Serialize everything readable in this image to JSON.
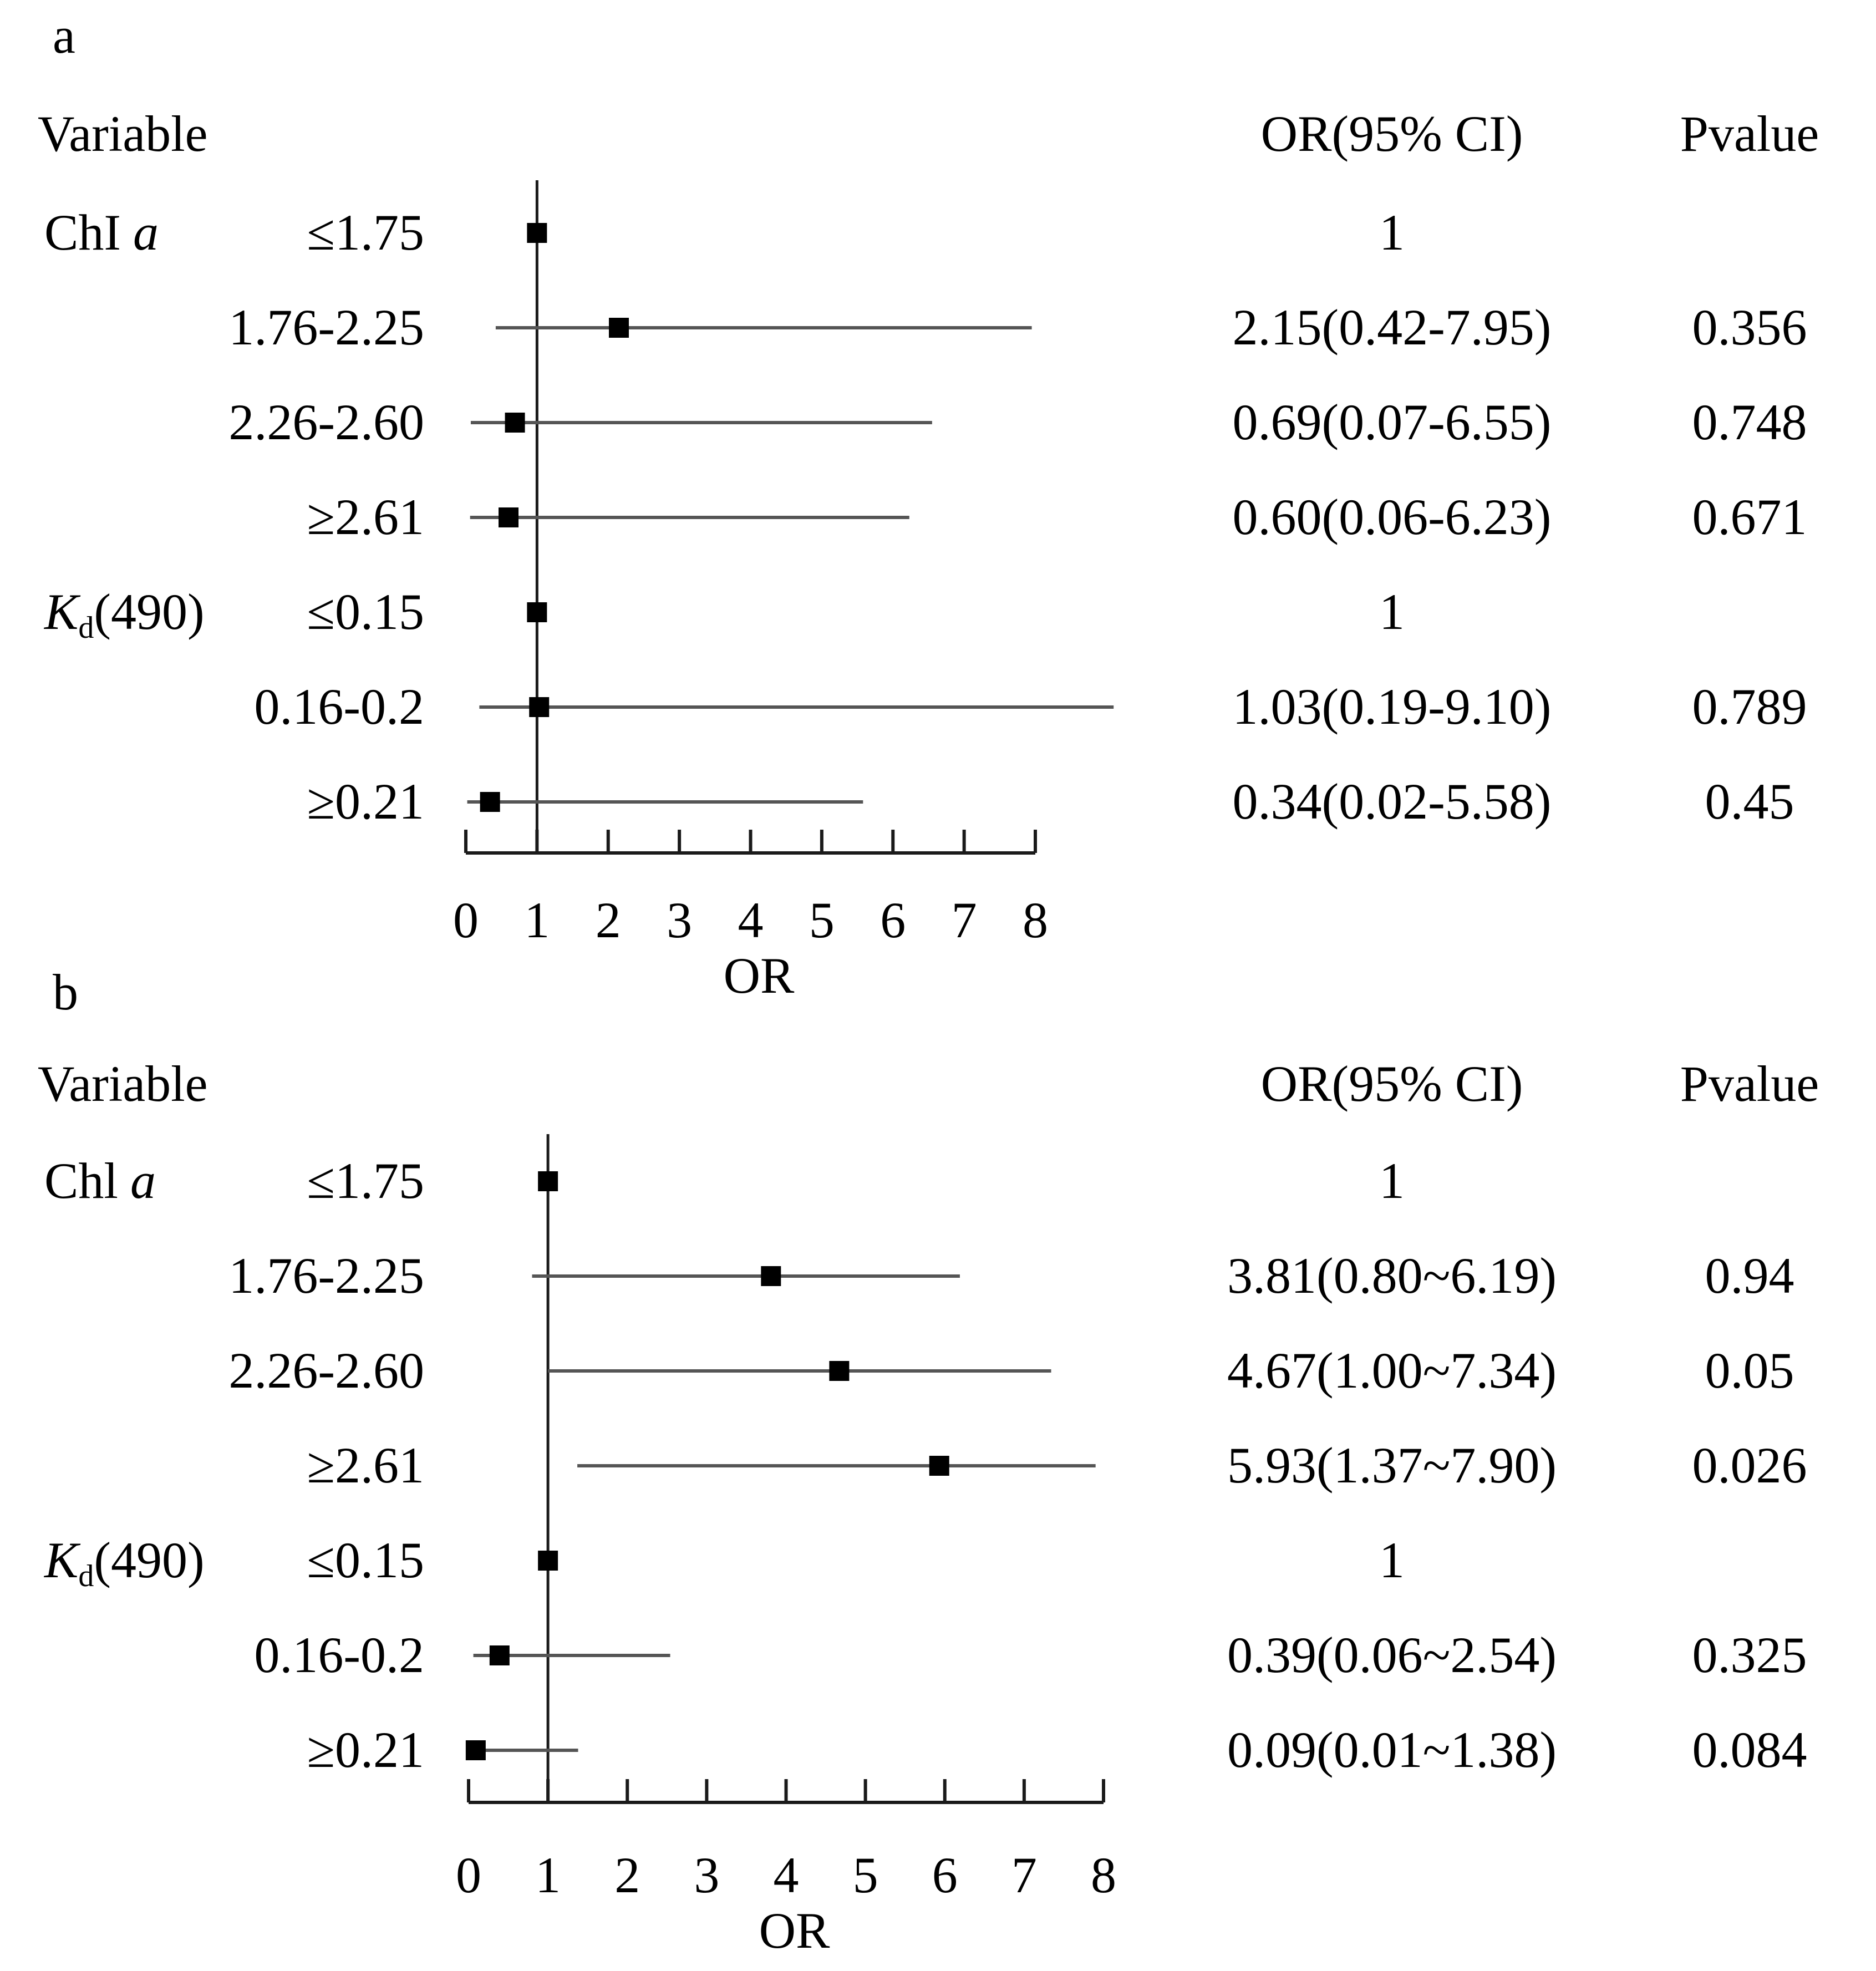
{
  "chart_data": [
    {
      "panel_label": "a",
      "type": "forest",
      "headers": {
        "variable": "Variable",
        "or_ci": "OR(95% CI)",
        "pvalue": "Pvalue"
      },
      "xlabel": "OR",
      "xlim": [
        0,
        8
      ],
      "xticks": [
        "0",
        "1",
        "2",
        "3",
        "4",
        "5",
        "6",
        "7",
        "8"
      ],
      "reference_line": 1,
      "groups": [
        {
          "name": "ChI",
          "name_italic": "a",
          "row_start": 0
        },
        {
          "name": "K",
          "subscript": "d",
          "suffix": "(490)",
          "row_start": 4
        }
      ],
      "rows": [
        {
          "label": "≤1.75",
          "or": 1,
          "lower": null,
          "upper": null,
          "or_ci_text": "1",
          "pvalue": ""
        },
        {
          "label": "1.76-2.25",
          "or": 2.15,
          "lower": 0.42,
          "upper": 7.95,
          "or_ci_text": "2.15(0.42-7.95)",
          "pvalue": "0.356"
        },
        {
          "label": "2.26-2.60",
          "or": 0.69,
          "lower": 0.07,
          "upper": 6.55,
          "or_ci_text": "0.69(0.07-6.55)",
          "pvalue": "0.748"
        },
        {
          "label": "≥2.61",
          "or": 0.6,
          "lower": 0.06,
          "upper": 6.23,
          "or_ci_text": "0.60(0.06-6.23)",
          "pvalue": "0.671"
        },
        {
          "label": "≤0.15",
          "or": 1,
          "lower": null,
          "upper": null,
          "or_ci_text": "1",
          "pvalue": ""
        },
        {
          "label": "0.16-0.2",
          "or": 1.03,
          "lower": 0.19,
          "upper": 9.1,
          "or_ci_text": "1.03(0.19-9.10)",
          "pvalue": "0.789"
        },
        {
          "label": "≥0.21",
          "or": 0.34,
          "lower": 0.02,
          "upper": 5.58,
          "or_ci_text": "0.34(0.02-5.58)",
          "pvalue": "0.45"
        }
      ]
    },
    {
      "panel_label": "b",
      "type": "forest",
      "headers": {
        "variable": "Variable",
        "or_ci": "OR(95% CI)",
        "pvalue": "Pvalue"
      },
      "xlabel": "OR",
      "xlim": [
        0,
        8
      ],
      "xticks": [
        "0",
        "1",
        "2",
        "3",
        "4",
        "5",
        "6",
        "7",
        "8"
      ],
      "reference_line": 1,
      "groups": [
        {
          "name": "Chl",
          "name_italic": "a",
          "row_start": 0
        },
        {
          "name": "K",
          "subscript": "d",
          "suffix": "(490)",
          "row_start": 4
        }
      ],
      "rows": [
        {
          "label": "≤1.75",
          "or": 1,
          "lower": null,
          "upper": null,
          "or_ci_text": "1",
          "pvalue": ""
        },
        {
          "label": "1.76-2.25",
          "or": 3.81,
          "lower": 0.8,
          "upper": 6.19,
          "or_ci_text": "3.81(0.80~6.19)",
          "pvalue": "0.94"
        },
        {
          "label": "2.26-2.60",
          "or": 4.67,
          "lower": 1.0,
          "upper": 7.34,
          "or_ci_text": "4.67(1.00~7.34)",
          "pvalue": "0.05"
        },
        {
          "label": "≥2.61",
          "or": 5.93,
          "lower": 1.37,
          "upper": 7.9,
          "or_ci_text": "5.93(1.37~7.90)",
          "pvalue": "0.026"
        },
        {
          "label": "≤0.15",
          "or": 1,
          "lower": null,
          "upper": null,
          "or_ci_text": "1",
          "pvalue": ""
        },
        {
          "label": "0.16-0.2",
          "or": 0.39,
          "lower": 0.06,
          "upper": 2.54,
          "or_ci_text": "0.39(0.06~2.54)",
          "pvalue": "0.325"
        },
        {
          "label": "≥0.21",
          "or": 0.09,
          "lower": 0.01,
          "upper": 1.38,
          "or_ci_text": "0.09(0.01~1.38)",
          "pvalue": "0.084"
        }
      ]
    }
  ]
}
